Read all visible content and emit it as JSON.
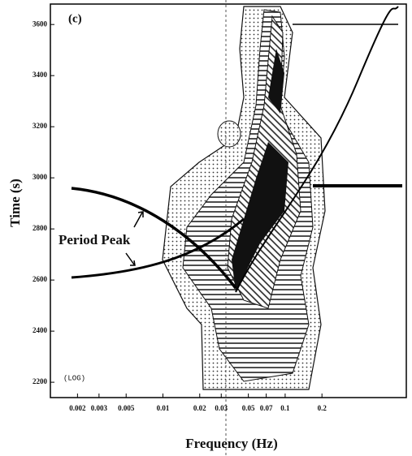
{
  "chart_data": {
    "type": "contour",
    "panel_label": "(c)",
    "x_label": "Frequency (Hz)",
    "y_label": "Time (s)",
    "scale_note": "(LOG)",
    "annotation": "Period Peak",
    "xscale": "log",
    "xlim": [
      0.0012,
      0.98
    ],
    "xticks": [
      0.002,
      0.003,
      0.005,
      0.01,
      0.02,
      0.03,
      0.05,
      0.07,
      0.1,
      0.2
    ],
    "ylim": [
      2140,
      3680
    ],
    "yticks": [
      2200,
      2400,
      2600,
      2800,
      3000,
      3200,
      3400,
      3600
    ]
  }
}
